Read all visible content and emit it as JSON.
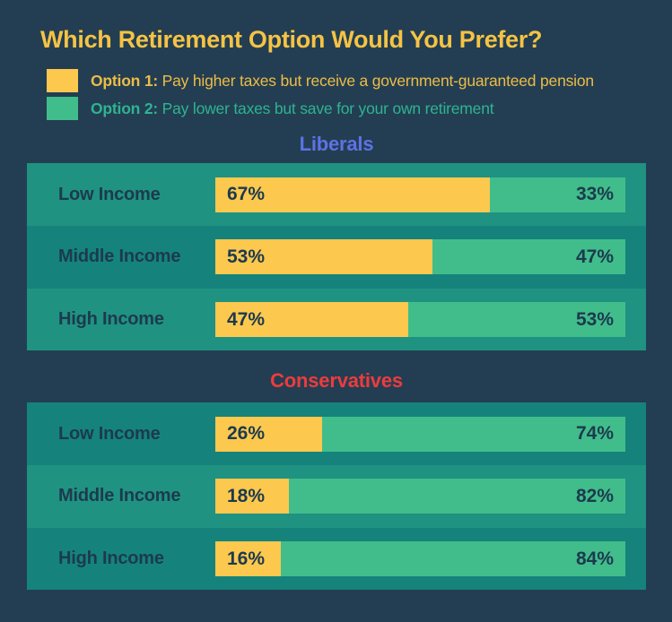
{
  "title": "Which Retirement Option Would You Prefer?",
  "colors": {
    "background": "#233e52",
    "title_text": "#f5c344",
    "row_light": "#1f9282",
    "row_dark": "#15837b",
    "option1": "#fcc84e",
    "option2": "#41bd8b",
    "dark_text": "#1c3a4e",
    "legend_option1_text": "#edbc47",
    "legend_option2_text": "#2fb392",
    "liberals_heading": "#5e72e6",
    "conservatives_heading": "#ee3b3d"
  },
  "legend": [
    {
      "series": "Option 1",
      "label_bold": "Option 1:",
      "label_rest": "Pay higher taxes but receive a government-guaranteed pension"
    },
    {
      "series": "Option 2",
      "label_bold": "Option 2:",
      "label_rest": "Pay lower taxes but save for your own retirement"
    }
  ],
  "chart_data": {
    "type": "bar",
    "stacked": true,
    "orientation": "horizontal",
    "unit": "%",
    "xlim": [
      0,
      100
    ],
    "series": [
      "Option 1",
      "Option 2"
    ],
    "series_descriptions": [
      "Pay higher taxes but receive a government-guaranteed pension",
      "Pay lower taxes but save for your own retirement"
    ],
    "groups": [
      {
        "name": "Liberals",
        "heading_color": "#5e72e6",
        "categories": [
          "Low Income",
          "Middle Income",
          "High Income"
        ],
        "rows": [
          {
            "category": "Low Income",
            "values": [
              67,
              33
            ],
            "labels": [
              "67%",
              "33%"
            ]
          },
          {
            "category": "Middle Income",
            "values": [
              53,
              47
            ],
            "labels": [
              "53%",
              "47%"
            ]
          },
          {
            "category": "High Income",
            "values": [
              47,
              53
            ],
            "labels": [
              "47%",
              "53%"
            ]
          }
        ]
      },
      {
        "name": "Conservatives",
        "heading_color": "#ee3b3d",
        "categories": [
          "Low Income",
          "Middle Income",
          "High Income"
        ],
        "rows": [
          {
            "category": "Low Income",
            "values": [
              26,
              74
            ],
            "labels": [
              "26%",
              "74%"
            ]
          },
          {
            "category": "Middle Income",
            "values": [
              18,
              82
            ],
            "labels": [
              "18%",
              "82%"
            ]
          },
          {
            "category": "High Income",
            "values": [
              16,
              84
            ],
            "labels": [
              "16%",
              "84%"
            ]
          }
        ]
      }
    ]
  }
}
